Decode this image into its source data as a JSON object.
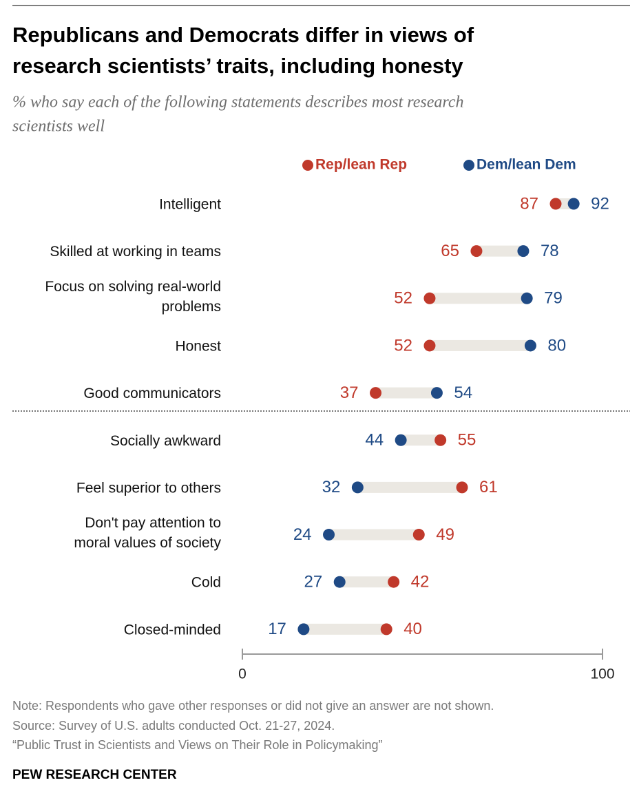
{
  "chart_data": {
    "type": "dumbbell",
    "title": [
      "Republicans and Democrats differ in views of",
      "research scientists’ traits, including honesty"
    ],
    "subtitle": [
      "% who say each of the following statements describes most research",
      "scientists well"
    ],
    "categories": [
      "Intelligent",
      "Skilled at working in teams",
      "Focus on solving real-world problems",
      "Honest",
      "Good communicators",
      "Socially awkward",
      "Feel superior to others",
      "Don't pay attention to moral values of society",
      "Cold",
      "Closed-minded"
    ],
    "series": [
      {
        "name": "Rep/lean Rep",
        "color": "#c0392b",
        "values": [
          87,
          65,
          52,
          52,
          37,
          55,
          61,
          49,
          42,
          40
        ]
      },
      {
        "name": "Dem/lean Dem",
        "color": "#1f4a85",
        "values": [
          92,
          78,
          79,
          80,
          54,
          44,
          32,
          24,
          27,
          17
        ]
      }
    ],
    "xlim": [
      0,
      100
    ],
    "xticks": [
      0,
      100
    ]
  },
  "notes": [
    "Note: Respondents who gave other responses or did not give an answer are not shown.",
    "Source: Survey of U.S. adults conducted Oct. 21-27, 2024.",
    "“Public Trust in Scientists and Views on Their Role in Policymaking”"
  ],
  "brand": "PEW RESEARCH CENTER"
}
